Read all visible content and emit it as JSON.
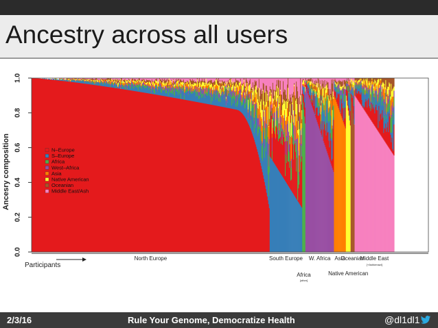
{
  "slide": {
    "title": "Ancestry across all users",
    "footer_date": "2/3/16",
    "footer_center": "Rule Your Genome, Democratize Health",
    "footer_handle": "@dl1dl1",
    "footer_icon": "twitter-bird-icon"
  },
  "chart_data": {
    "type": "area",
    "ylabel": "Ancesry composition",
    "xlabel": "Participants",
    "ylim": [
      0.0,
      1.0
    ],
    "yticks": [
      "0.0",
      "0.2",
      "0.4",
      "0.6",
      "0.8",
      "1.0"
    ],
    "legend_position": "left",
    "legend": [
      {
        "name": "N–Europe",
        "color": "#e41a1c"
      },
      {
        "name": "S–Europe",
        "color": "#377eb8"
      },
      {
        "name": "Africa",
        "color": "#4daf4a"
      },
      {
        "name": "West–Africa",
        "color": "#984ea3"
      },
      {
        "name": "Asia",
        "color": "#ff7f00"
      },
      {
        "name": "Native American",
        "color": "#ffff33"
      },
      {
        "name": "Oceanian",
        "color": "#a65628"
      },
      {
        "name": "Middle East/Ash",
        "color": "#f781bf"
      }
    ],
    "groups": [
      {
        "label": "North Europe",
        "share": 0.6,
        "dominant": 0
      },
      {
        "label": "South Europe",
        "share": 0.082,
        "dominant": 1
      },
      {
        "label": "Africa",
        "sublabel": "[other]",
        "share": 0.008,
        "dominant": 2
      },
      {
        "label": "W. Africa",
        "share": 0.072,
        "dominant": 3
      },
      {
        "label": "Asia",
        "share": 0.03,
        "dominant": 4
      },
      {
        "label": "Native American",
        "share": 0.012,
        "dominant": 5
      },
      {
        "label": "Oceanian",
        "share": 0.01,
        "dominant": 6
      },
      {
        "label": "Middle East",
        "sublabel": "[+Ashkenazi]",
        "share": 0.1,
        "dominant": 7
      }
    ]
  }
}
